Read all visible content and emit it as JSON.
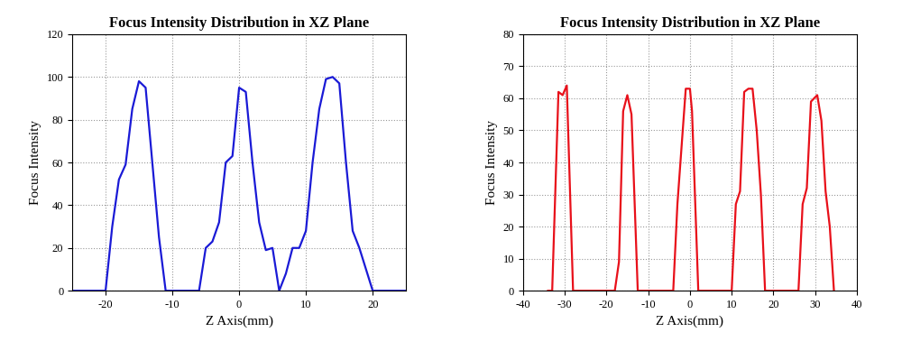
{
  "chart_data": [
    {
      "type": "line",
      "title": "Focus Intensity Distribution in XZ Plane",
      "x_label": "Z Axis(mm)",
      "y_label": "Focus Intensity",
      "x": [
        -25,
        -20,
        -19,
        -18,
        -17,
        -16,
        -15,
        -14,
        -13,
        -12,
        -11,
        -10,
        -6,
        -5,
        -4,
        -3,
        -2,
        -1,
        0,
        1,
        2,
        3,
        4,
        5,
        6,
        7,
        8,
        9,
        10,
        11,
        12,
        13,
        14,
        15,
        16,
        17,
        18,
        19,
        20,
        25
      ],
      "series": [
        {
          "name": "Focus Intensity",
          "color": "#1a1ad6",
          "values": [
            0,
            0,
            30,
            52,
            59,
            85,
            98,
            95,
            60,
            25,
            0,
            0,
            0,
            20,
            23,
            32,
            60,
            63,
            95,
            93,
            60,
            32,
            19,
            20,
            0,
            8,
            20,
            20,
            28,
            60,
            85,
            99,
            100,
            97,
            60,
            28,
            20,
            10,
            0,
            0
          ]
        }
      ],
      "xlim": [
        -25,
        25
      ],
      "xticks": [
        -20,
        -10,
        0,
        10,
        20
      ],
      "ylim": [
        0,
        120
      ],
      "yticks": [
        0,
        20,
        40,
        60,
        80,
        100,
        120
      ],
      "grid": true
    },
    {
      "type": "line",
      "title": "Focus Intensity Distribution in XZ Plane",
      "x_label": "Z Axis(mm)",
      "y_label": "Focus Intensity",
      "x": [
        -34,
        -33,
        -31.5,
        -30.5,
        -29.5,
        -28,
        -18,
        -17,
        -16,
        -15,
        -14,
        -12.5,
        -4,
        -3,
        -2,
        -1,
        0,
        0.5,
        2,
        10,
        11,
        12,
        13,
        14,
        15,
        16,
        17,
        18,
        26,
        27,
        28,
        29,
        30.5,
        31.5,
        32.5,
        33.5,
        34.5
      ],
      "series": [
        {
          "name": "Focus Intensity",
          "color": "#e8101a",
          "values": [
            0,
            0,
            62,
            61,
            64,
            0,
            0,
            9,
            56,
            61,
            55,
            0,
            0,
            27,
            45,
            63,
            63,
            56,
            0,
            0,
            27,
            31,
            62,
            63,
            63,
            50,
            30,
            0,
            0,
            27,
            32,
            59,
            61,
            53,
            31,
            20,
            0
          ]
        }
      ],
      "xlim": [
        -40,
        40
      ],
      "xticks": [
        -40,
        -30,
        -20,
        -10,
        0,
        10,
        20,
        30,
        40
      ],
      "ylim": [
        0,
        80
      ],
      "yticks": [
        0,
        10,
        20,
        30,
        40,
        50,
        60,
        70,
        80
      ],
      "grid": true
    }
  ]
}
